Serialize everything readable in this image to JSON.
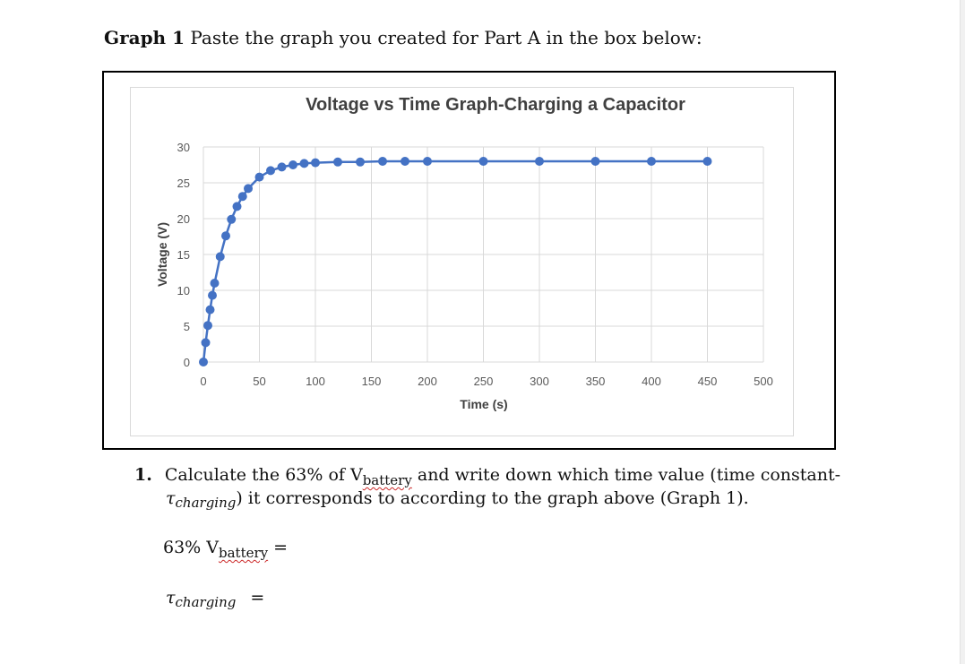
{
  "heading": {
    "label": "Graph 1",
    "text": "Paste the graph you created for Part A in the box below:"
  },
  "chart_data": {
    "type": "scatter",
    "title": "Voltage vs Time Graph-Charging a Capacitor",
    "xlabel": "Time (s)",
    "ylabel": "Voltage (V)",
    "xlim": [
      0,
      500
    ],
    "ylim": [
      0,
      30
    ],
    "xticks": [
      "0",
      "50",
      "100",
      "150",
      "200",
      "250",
      "300",
      "350",
      "400",
      "450",
      "500"
    ],
    "yticks": [
      "0",
      "5",
      "10",
      "15",
      "20",
      "25",
      "30"
    ],
    "grid": true,
    "series_color": "#4472c4",
    "x": [
      0,
      2,
      4,
      6,
      8,
      10,
      15,
      20,
      25,
      30,
      35,
      40,
      50,
      60,
      70,
      80,
      90,
      100,
      120,
      140,
      160,
      180,
      200,
      250,
      300,
      350,
      400,
      450
    ],
    "y": [
      0,
      2.7,
      5.1,
      7.3,
      9.3,
      11,
      14.7,
      17.6,
      19.9,
      21.7,
      23.1,
      24.2,
      25.8,
      26.7,
      27.2,
      27.5,
      27.7,
      27.8,
      27.9,
      27.9,
      28,
      28,
      28,
      28,
      28,
      28,
      28,
      28
    ]
  },
  "question": {
    "number": "1.",
    "line1_a": "Calculate the 63% of V",
    "line1_sub": "battery",
    "line1_b": " and write down which time value (time constant-",
    "tau_sub": "charging",
    "line2_b": ") it corresponds to according to the graph above (Graph 1).",
    "answer1_a": "63% V",
    "answer1_sub": "battery",
    "answer1_b": " =",
    "answer2_sub": "charging",
    "answer2_b": " ="
  }
}
